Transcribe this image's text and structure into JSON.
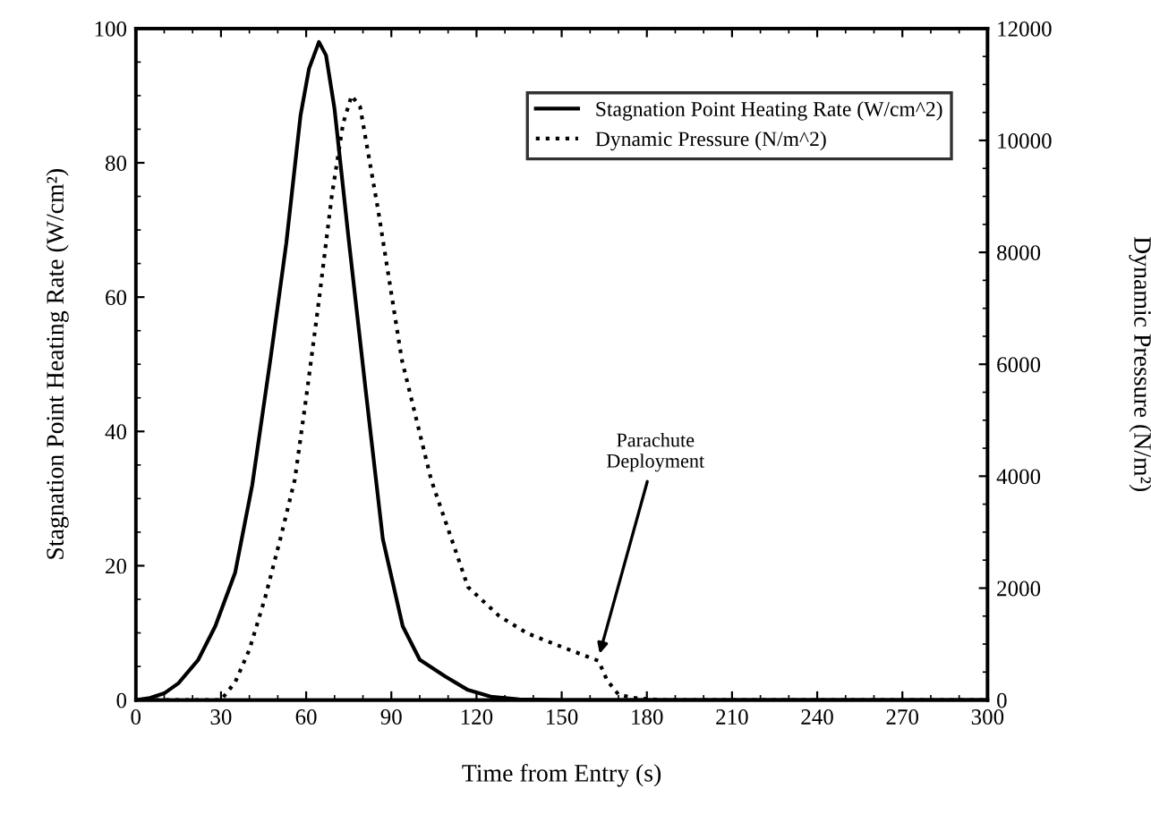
{
  "chart_data": {
    "type": "line",
    "xlabel": "Time from Entry (s)",
    "ylabel": "Stagnation Point Heating Rate (W/cm²)",
    "y2label": "Dynamic Pressure (N/m²)",
    "xlim": [
      0,
      300
    ],
    "xticks": [
      0,
      30,
      60,
      90,
      120,
      150,
      180,
      210,
      240,
      270,
      300
    ],
    "ylim": [
      0,
      100
    ],
    "yticks": [
      0,
      20,
      40,
      60,
      80,
      100
    ],
    "y2lim": [
      0,
      12000
    ],
    "y2ticks": [
      0,
      2000,
      4000,
      6000,
      8000,
      10000,
      12000
    ],
    "grid": false,
    "legend": "top right",
    "annotations": [
      "Parachute\nDeployment"
    ],
    "series": [
      {
        "name": "Stagnation Point Heating Rate (W/cm^2)",
        "color": "#000000",
        "line_style": "solid",
        "x": [
          0,
          5,
          10,
          15,
          22,
          28,
          35,
          41,
          47.5,
          53,
          58,
          61,
          64.5,
          67,
          70,
          75,
          81,
          87,
          94,
          100,
          109,
          117,
          125,
          135,
          150,
          300
        ],
        "values": [
          0,
          0.3,
          1,
          2.5,
          6,
          11,
          19,
          32,
          51,
          68,
          87,
          94,
          98,
          96,
          88,
          68.5,
          46,
          24,
          11,
          6,
          3.5,
          1.5,
          0.5,
          0.1,
          0,
          0
        ]
      },
      {
        "name": "Dynamic Pressure (N/m^2)",
        "color": "#000000",
        "line_style": "dotted",
        "axis": "y2",
        "x": [
          0,
          30,
          35,
          40,
          45.5,
          51,
          56,
          60,
          64.5,
          69,
          73,
          76,
          79,
          85.4,
          93.7,
          104,
          117,
          128,
          138,
          150,
          163,
          166,
          170,
          175,
          185,
          300
        ],
        "values": [
          0,
          0,
          320,
          900,
          1820,
          2900,
          3940,
          5400,
          7140,
          9000,
          10300,
          10800,
          10600,
          8740,
          6080,
          3940,
          2020,
          1500,
          1190,
          950,
          700,
          350,
          100,
          40,
          0,
          0
        ]
      }
    ]
  }
}
